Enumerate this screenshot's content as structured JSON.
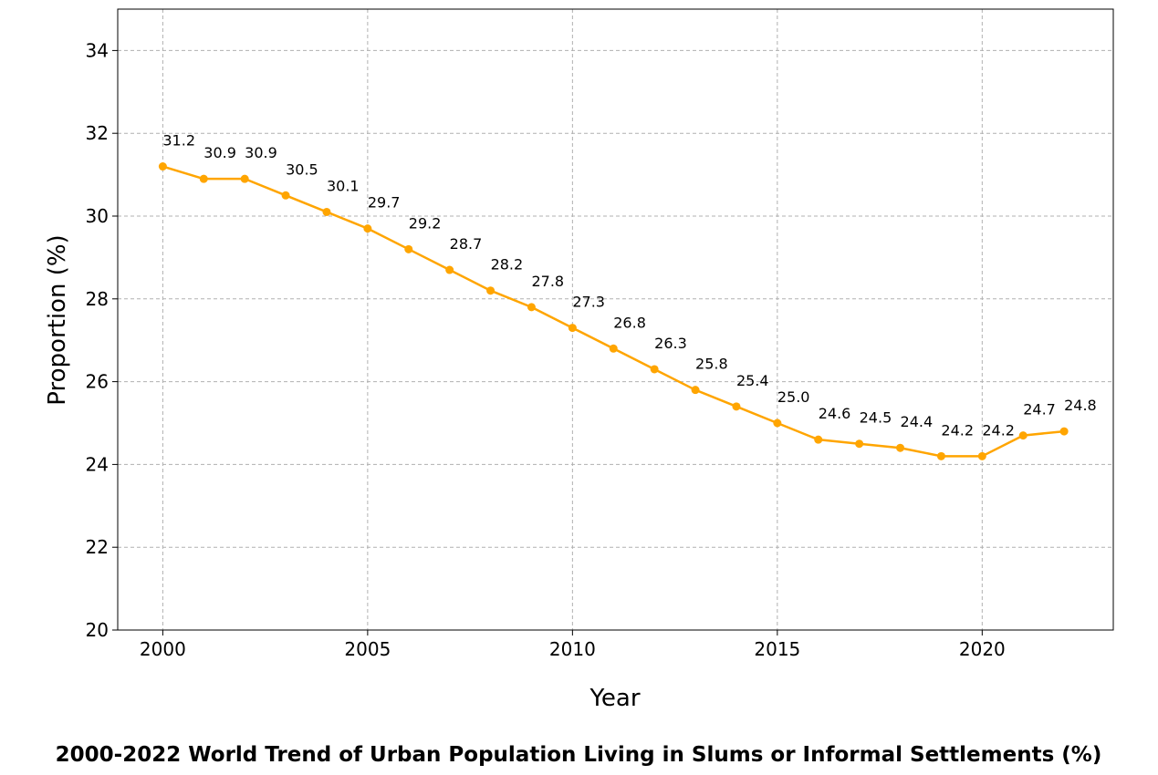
{
  "chart_data": {
    "type": "line",
    "title": "2000-2022 World Trend of Urban Population Living in Slums or Informal Settlements (%)",
    "xlabel": "Year",
    "ylabel": "Proportion (%)",
    "x": [
      2000,
      2001,
      2002,
      2003,
      2004,
      2005,
      2006,
      2007,
      2008,
      2009,
      2010,
      2011,
      2012,
      2013,
      2014,
      2015,
      2016,
      2017,
      2018,
      2019,
      2020,
      2021,
      2022
    ],
    "series": [
      {
        "values": [
          31.2,
          30.9,
          30.9,
          30.5,
          30.1,
          29.7,
          29.2,
          28.7,
          28.2,
          27.8,
          27.3,
          26.8,
          26.3,
          25.8,
          25.4,
          25.0,
          24.6,
          24.5,
          24.4,
          24.2,
          24.2,
          24.7,
          24.8
        ],
        "color": "#FFA500",
        "marker": "circle"
      }
    ],
    "data_labels": [
      "31.2",
      "30.9",
      "30.9",
      "30.5",
      "30.1",
      "29.7",
      "29.2",
      "28.7",
      "28.2",
      "27.8",
      "27.3",
      "26.8",
      "26.3",
      "25.8",
      "25.4",
      "25.0",
      "24.6",
      "24.5",
      "24.4",
      "24.2",
      "24.2",
      "24.7",
      "24.8"
    ],
    "xlim": [
      1998.9,
      2023.2
    ],
    "ylim": [
      20,
      35
    ],
    "xticks": [
      2000,
      2005,
      2010,
      2015,
      2020
    ],
    "xtick_labels": [
      "2000",
      "2005",
      "2010",
      "2015",
      "2020"
    ],
    "yticks": [
      20,
      22,
      24,
      26,
      28,
      30,
      32,
      34
    ],
    "ytick_labels": [
      "20",
      "22",
      "24",
      "26",
      "28",
      "30",
      "32",
      "34"
    ],
    "grid": true,
    "legend": "none"
  }
}
